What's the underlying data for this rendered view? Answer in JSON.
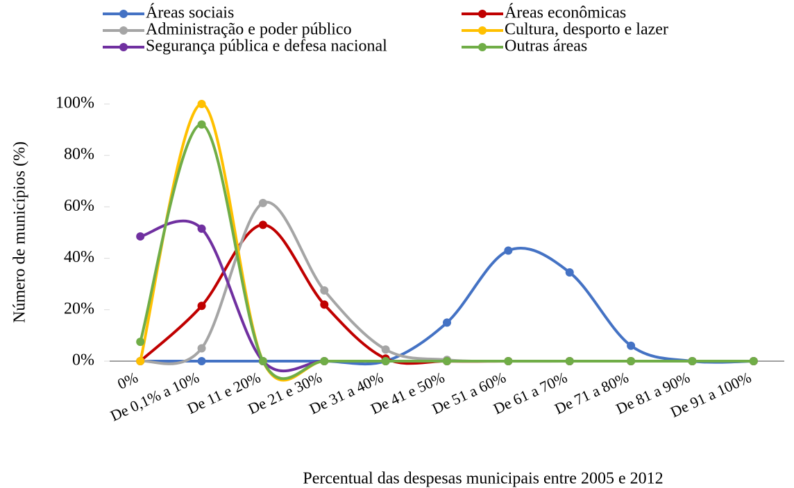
{
  "chart_data": {
    "type": "line",
    "smooth": true,
    "legend": "top",
    "xlabel": "Percentual das despesas municipais entre 2005 e 2012",
    "ylabel": "Número de municípios (%)",
    "categories": [
      "0%",
      "De 0,1% a 10%",
      "De 11 e 20%",
      "De 21 e 30%",
      "De 31 a 40%",
      "De 41 e 50%",
      "De 51 a 60%",
      "De 61 a 70%",
      "De 71 a 80%",
      "De 81 a 90%",
      "De 91 a 100%"
    ],
    "ylim": [
      0,
      100
    ],
    "yticks": [
      {
        "value": 0,
        "label": "0%"
      },
      {
        "value": 20,
        "label": "20%"
      },
      {
        "value": 40,
        "label": "40%"
      },
      {
        "value": 60,
        "label": "60%"
      },
      {
        "value": 80,
        "label": "80%"
      },
      {
        "value": 100,
        "label": "100%"
      }
    ],
    "series": [
      {
        "name": "Áreas sociais",
        "color": "#4472c4",
        "values": [
          0,
          0,
          0,
          0,
          0,
          15,
          43,
          34.5,
          6,
          0,
          0
        ]
      },
      {
        "name": "Áreas econômicas",
        "color": "#c00000",
        "values": [
          0,
          21.5,
          53,
          22,
          1,
          0,
          0,
          0,
          0,
          0,
          0
        ]
      },
      {
        "name": "Administração e poder público",
        "color": "#a5a5a5",
        "values": [
          0,
          5,
          61.5,
          27.5,
          4.5,
          0.5,
          0,
          0,
          0,
          0,
          0
        ]
      },
      {
        "name": "Cultura, desporto e lazer",
        "color": "#ffc000",
        "values": [
          0,
          100,
          0,
          0,
          0,
          0,
          0,
          0,
          0,
          0,
          0
        ]
      },
      {
        "name": "Segurança pública e defesa nacional",
        "color": "#7030a0",
        "values": [
          48.5,
          51.5,
          0,
          0,
          0,
          0,
          0,
          0,
          0,
          0,
          0
        ]
      },
      {
        "name": "Outras áreas",
        "color": "#70ad47",
        "values": [
          7.5,
          92,
          0,
          0,
          0,
          0,
          0,
          0,
          0,
          0,
          0
        ]
      }
    ]
  }
}
